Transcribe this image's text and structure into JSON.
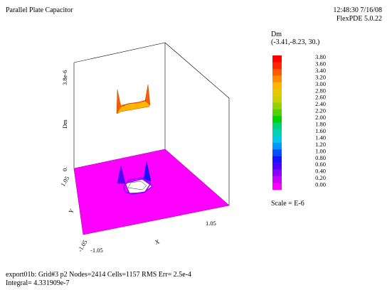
{
  "header": {
    "title": "Parallel Plate Capacitor",
    "timestamp": "12:48:30 7/16/08",
    "program": "FlexPDE 5.0.22"
  },
  "legend": {
    "title": "Dm",
    "view": "(-3.41,-8.23, 30.)",
    "scale_note": "Scale = E-6"
  },
  "footer": {
    "line1": "export01b:  Grid#3  p2  Nodes=2414 Cells=1157 RMS Err= 2.5e-4",
    "line2": "Integral=  4.331909e-7"
  },
  "chart_data": {
    "type": "surface3d",
    "title": "Parallel Plate Capacitor",
    "xlabel": "X",
    "ylabel": "Y",
    "zlabel": "Dm",
    "x_ticks": [
      "-1.05",
      "1.05"
    ],
    "y_ticks": [
      "1.05",
      "-1.05"
    ],
    "z_ticks": [
      "0.",
      "3.8e-6"
    ],
    "xlim": [
      -1.05,
      1.05
    ],
    "ylim": [
      -1.05,
      1.05
    ],
    "zlim": [
      0,
      3.8e-06
    ],
    "colorbar": {
      "unit_scale": "E-6",
      "levels": [
        {
          "label": "3.80",
          "color": "#ff0000"
        },
        {
          "label": "3.60",
          "color": "#ff2800"
        },
        {
          "label": "3.40",
          "color": "#ff5a00"
        },
        {
          "label": "3.20",
          "color": "#ff8c00"
        },
        {
          "label": "3.00",
          "color": "#ffb400"
        },
        {
          "label": "2.80",
          "color": "#e6c800"
        },
        {
          "label": "2.60",
          "color": "#c8d200"
        },
        {
          "label": "2.40",
          "color": "#96d200"
        },
        {
          "label": "2.20",
          "color": "#50d200"
        },
        {
          "label": "2.00",
          "color": "#00d200"
        },
        {
          "label": "1.80",
          "color": "#00d278"
        },
        {
          "label": "1.60",
          "color": "#00d2b4"
        },
        {
          "label": "1.40",
          "color": "#00c8e6"
        },
        {
          "label": "1.20",
          "color": "#0096ff"
        },
        {
          "label": "1.00",
          "color": "#0050ff"
        },
        {
          "label": "0.80",
          "color": "#1414ff"
        },
        {
          "label": "0.60",
          "color": "#5000ff"
        },
        {
          "label": "0.40",
          "color": "#8c00ff"
        },
        {
          "label": "0.20",
          "color": "#c800ff"
        },
        {
          "label": "0.00",
          "color": "#ff00ff"
        }
      ]
    }
  }
}
